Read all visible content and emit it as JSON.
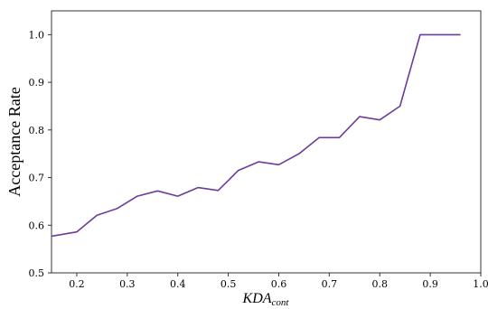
{
  "chart_data": {
    "type": "line",
    "xlabel_main": "KDA",
    "xlabel_sub": "cont",
    "ylabel": "Acceptance Rate",
    "xlim": [
      0.15,
      1.0
    ],
    "ylim": [
      0.5,
      1.05
    ],
    "xticks": [
      "0.2",
      "0.3",
      "0.4",
      "0.5",
      "0.6",
      "0.7",
      "0.8",
      "0.9",
      "1.0"
    ],
    "yticks": [
      "0.5",
      "0.6",
      "0.7",
      "0.8",
      "0.9",
      "1.0"
    ],
    "grid": false,
    "series": [
      {
        "color": "#6a3d9a",
        "x": [
          0.15,
          0.2,
          0.24,
          0.28,
          0.32,
          0.36,
          0.4,
          0.44,
          0.48,
          0.52,
          0.56,
          0.6,
          0.64,
          0.68,
          0.72,
          0.76,
          0.8,
          0.84,
          0.88,
          0.92,
          0.96
        ],
        "y": [
          0.577,
          0.586,
          0.621,
          0.635,
          0.661,
          0.672,
          0.661,
          0.679,
          0.673,
          0.715,
          0.733,
          0.727,
          0.75,
          0.784,
          0.784,
          0.828,
          0.821,
          0.85,
          1.0,
          1.0,
          1.0
        ]
      }
    ]
  }
}
